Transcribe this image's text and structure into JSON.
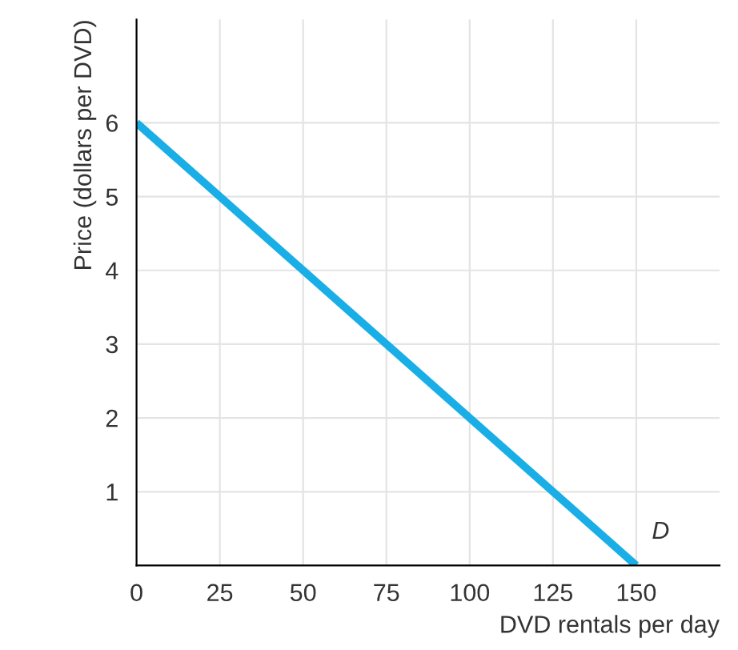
{
  "chart_data": {
    "type": "line",
    "xlabel": "DVD rentals per day",
    "ylabel": "Price (dollars per DVD)",
    "x": [
      0,
      150
    ],
    "series": [
      {
        "color": "#1aaee6",
        "values": [
          6,
          0
        ]
      }
    ],
    "annotations": [
      {
        "text": "D",
        "x": 150,
        "y": 0
      }
    ],
    "xlim": [
      0,
      175
    ],
    "ylim": [
      0,
      7.4
    ],
    "xticks": [
      0,
      25,
      50,
      75,
      100,
      125,
      150
    ],
    "yticks": [
      1,
      2,
      3,
      4,
      5,
      6
    ],
    "grid": true,
    "marker": "none",
    "line_style": "solid",
    "legend": false
  }
}
